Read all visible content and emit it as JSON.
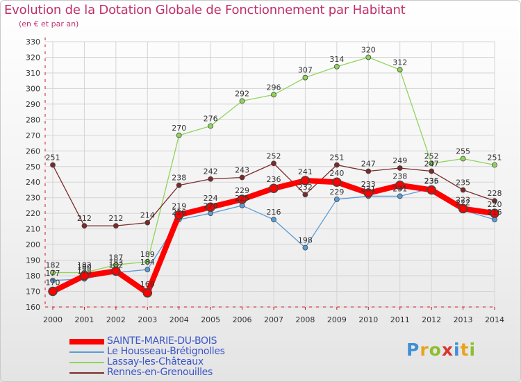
{
  "header": {
    "title": "Evolution de la Dotation Globale de Fonctionnement par Habitant",
    "subtitle": "(en € et par an)"
  },
  "brand": {
    "letters": [
      "P",
      "r",
      "o",
      "x",
      "i",
      "t",
      "i"
    ],
    "colors": [
      "#3d8fd6",
      "#e8a31e",
      "#8dbf2d",
      "#d7362f",
      "#3d8fd6",
      "#e8a31e",
      "#8dbf2d"
    ]
  },
  "colors": {
    "axis": "#cc1a1a",
    "grid": "#d4d4d4",
    "label": "#333333",
    "marker_outline": "#444444",
    "legend_text": "#3a56c8",
    "title": "#c0306a"
  },
  "chart_data": {
    "type": "line",
    "title": "Evolution de la Dotation Globale de Fonctionnement par Habitant",
    "subtitle": "(en € et par an)",
    "xlabel": "",
    "ylabel": "",
    "x": [
      "2000",
      "2001",
      "2002",
      "2003",
      "2004",
      "2005",
      "2006",
      "2007",
      "2008",
      "2009",
      "2010",
      "2011",
      "2012",
      "2013",
      "2014"
    ],
    "ylim": [
      160,
      330
    ],
    "yticks": [
      160,
      170,
      180,
      190,
      200,
      210,
      220,
      230,
      240,
      250,
      260,
      270,
      280,
      290,
      300,
      310,
      320,
      330
    ],
    "grid": true,
    "legend_position": "bottom-left",
    "series": [
      {
        "name": "Le Housseau-Brétignolles",
        "color": "#5b9bd5",
        "values": [
          177,
          178,
          182,
          184,
          216,
          220,
          225,
          216,
          198,
          229,
          231,
          231,
          236,
          222,
          216
        ],
        "labels": [
          "177",
          "178",
          "182",
          "184",
          "216",
          "220",
          "225",
          "216",
          "198",
          "229",
          "231",
          "231",
          "236",
          "222",
          "216"
        ]
      },
      {
        "name": "Lassay-les-Châteaux",
        "color": "#8fd45a",
        "values": [
          182,
          182,
          187,
          189,
          270,
          276,
          292,
          296,
          307,
          314,
          320,
          312,
          252,
          255,
          251
        ],
        "labels": [
          "182",
          "182",
          "187",
          "189",
          "270",
          "276",
          "292",
          "296",
          "307",
          "314",
          "320",
          "312",
          "252",
          "255",
          "251"
        ]
      },
      {
        "name": "Rennes-en-Grenouilles",
        "color": "#7a2a2a",
        "values": [
          251,
          212,
          212,
          214,
          238,
          242,
          243,
          252,
          232,
          251,
          247,
          249,
          247,
          235,
          228
        ],
        "labels": [
          "251",
          "212",
          "212",
          "214",
          "238",
          "242",
          "243",
          "252",
          "232",
          "251",
          "247",
          "249",
          "247",
          "235",
          "228"
        ]
      },
      {
        "name": "SAINTE-MARIE-DU-BOIS",
        "color": "#ff0000",
        "values": [
          170,
          180,
          183,
          169,
          219,
          224,
          229,
          236,
          241,
          240,
          233,
          238,
          235,
          223,
          220
        ],
        "labels": [
          "170",
          "180",
          "183",
          "169",
          "219",
          "224",
          "229",
          "236",
          "241",
          "240",
          "233",
          "238",
          "235",
          "223",
          "220"
        ]
      }
    ]
  },
  "legend": {
    "items": [
      {
        "label": "SAINTE-MARIE-DU-BOIS",
        "color": "#ff0000",
        "thick": true
      },
      {
        "label": "Le Housseau-Brétignolles",
        "color": "#5b9bd5",
        "thick": false
      },
      {
        "label": "Lassay-les-Châteaux",
        "color": "#8fd45a",
        "thick": false
      },
      {
        "label": "Rennes-en-Grenouilles",
        "color": "#7a2a2a",
        "thick": false
      }
    ]
  }
}
